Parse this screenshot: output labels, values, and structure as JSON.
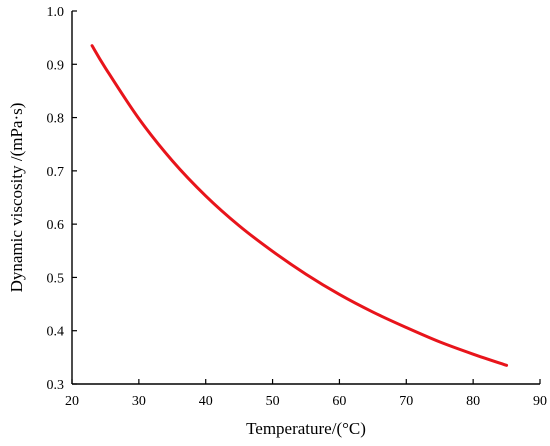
{
  "chart_data": {
    "type": "line",
    "title": "",
    "xlabel": "Temperature/(°C)",
    "ylabel": "Dynamic viscosity  /(mPa·s)",
    "xlim": [
      20,
      90
    ],
    "ylim": [
      0.3,
      1.0
    ],
    "xticks": [
      20,
      30,
      40,
      50,
      60,
      70,
      80,
      90
    ],
    "yticks": [
      0.3,
      0.4,
      0.5,
      0.6,
      0.7,
      0.8,
      0.9,
      1.0
    ],
    "xtick_labels": [
      "20",
      "30",
      "40",
      "50",
      "60",
      "70",
      "80",
      "90"
    ],
    "ytick_labels": [
      "0.3",
      "0.4",
      "0.5",
      "0.6",
      "0.7",
      "0.8",
      "0.9",
      "1.0"
    ],
    "grid": false,
    "legend": "none",
    "series": [
      {
        "color": "#e8141b",
        "x": [
          23,
          25,
          30,
          35,
          40,
          45,
          50,
          55,
          60,
          65,
          70,
          75,
          80,
          85
        ],
        "y": [
          0.935,
          0.893,
          0.798,
          0.719,
          0.653,
          0.597,
          0.549,
          0.506,
          0.468,
          0.435,
          0.406,
          0.379,
          0.356,
          0.335
        ]
      }
    ]
  }
}
